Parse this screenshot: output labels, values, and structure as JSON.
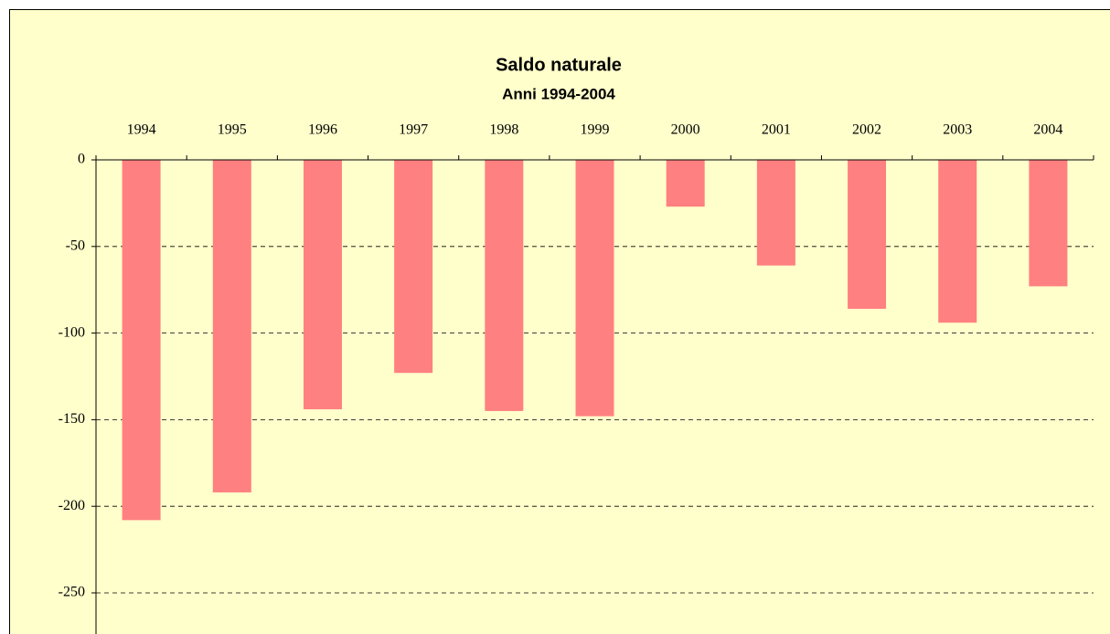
{
  "chart_data": {
    "type": "bar",
    "title": "Saldo naturale",
    "subtitle": "Anni 1994-2004",
    "categories": [
      "1994",
      "1995",
      "1996",
      "1997",
      "1998",
      "1999",
      "2000",
      "2001",
      "2002",
      "2003",
      "2004"
    ],
    "values": [
      -208,
      -192,
      -144,
      -123,
      -145,
      -148,
      -27,
      -61,
      -86,
      -94,
      -73
    ],
    "color": "#ff8080",
    "ylim": [
      -250,
      0
    ],
    "yticks": [
      0,
      -50,
      -100,
      -150,
      -200,
      -250
    ],
    "grid": true
  }
}
